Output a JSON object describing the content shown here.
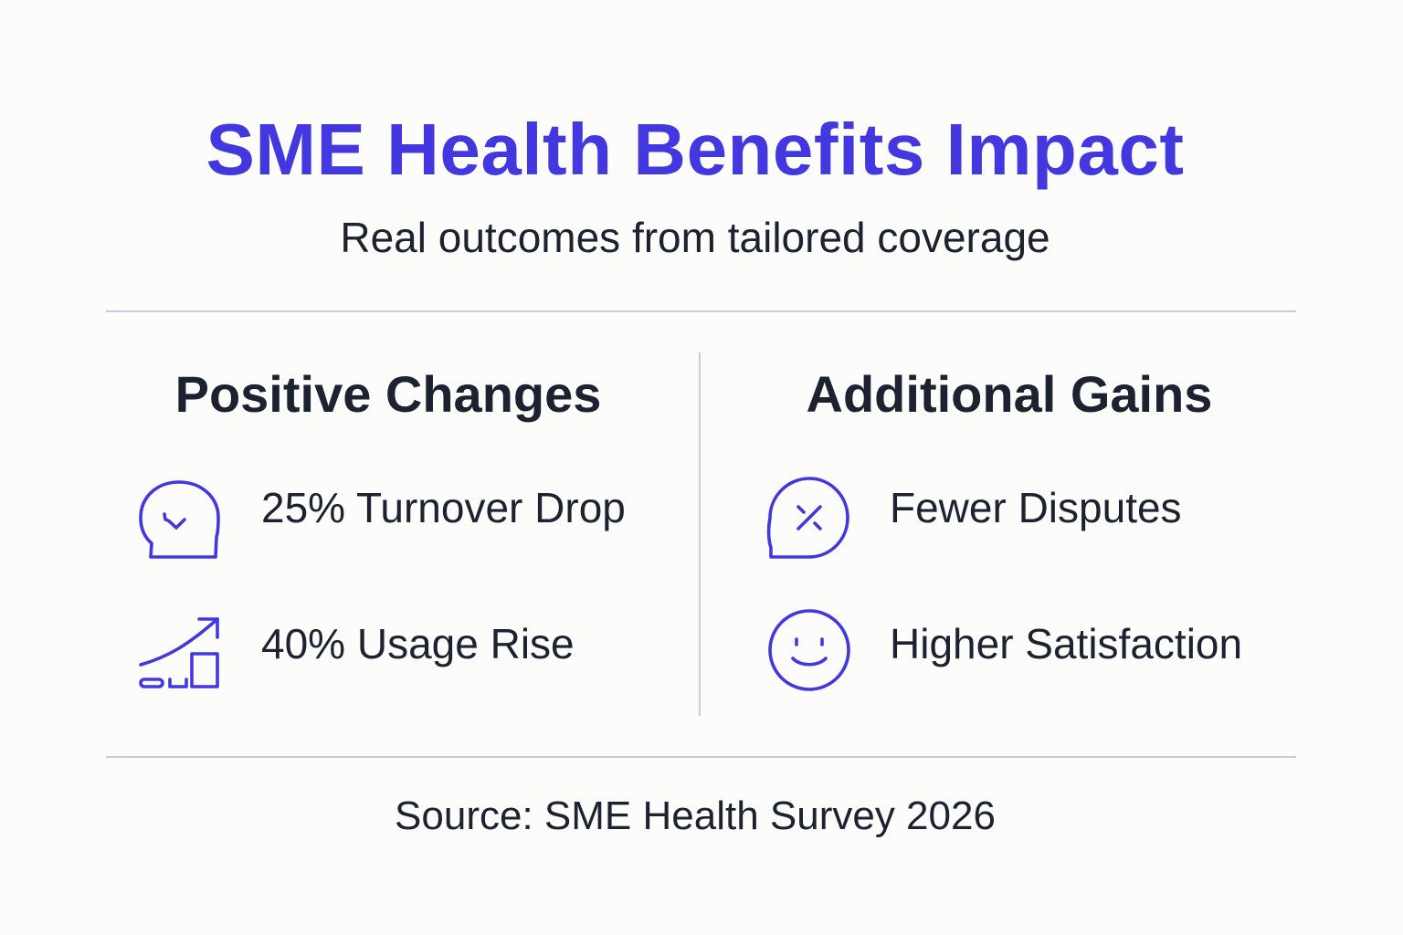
{
  "header": {
    "title": "SME Health Benefits Impact",
    "subtitle": "Real outcomes from tailored coverage"
  },
  "columns": [
    {
      "heading": "Positive Changes",
      "items": [
        {
          "icon": "speech-bubble-check-icon",
          "label": "25% Turnover Drop"
        },
        {
          "icon": "growth-chart-arrow-icon",
          "label": "40% Usage Rise"
        }
      ]
    },
    {
      "heading": "Additional Gains",
      "items": [
        {
          "icon": "speech-bubble-x-icon",
          "label": "Fewer Disputes"
        },
        {
          "icon": "smiley-face-icon",
          "label": "Higher Satisfaction"
        }
      ]
    }
  ],
  "footer": {
    "source": "Source: SME Health Survey 2026"
  },
  "colors": {
    "accent": "#4338e0",
    "text": "#1c2230",
    "divider": "#c4cedf",
    "background": "#fcfcfa"
  }
}
